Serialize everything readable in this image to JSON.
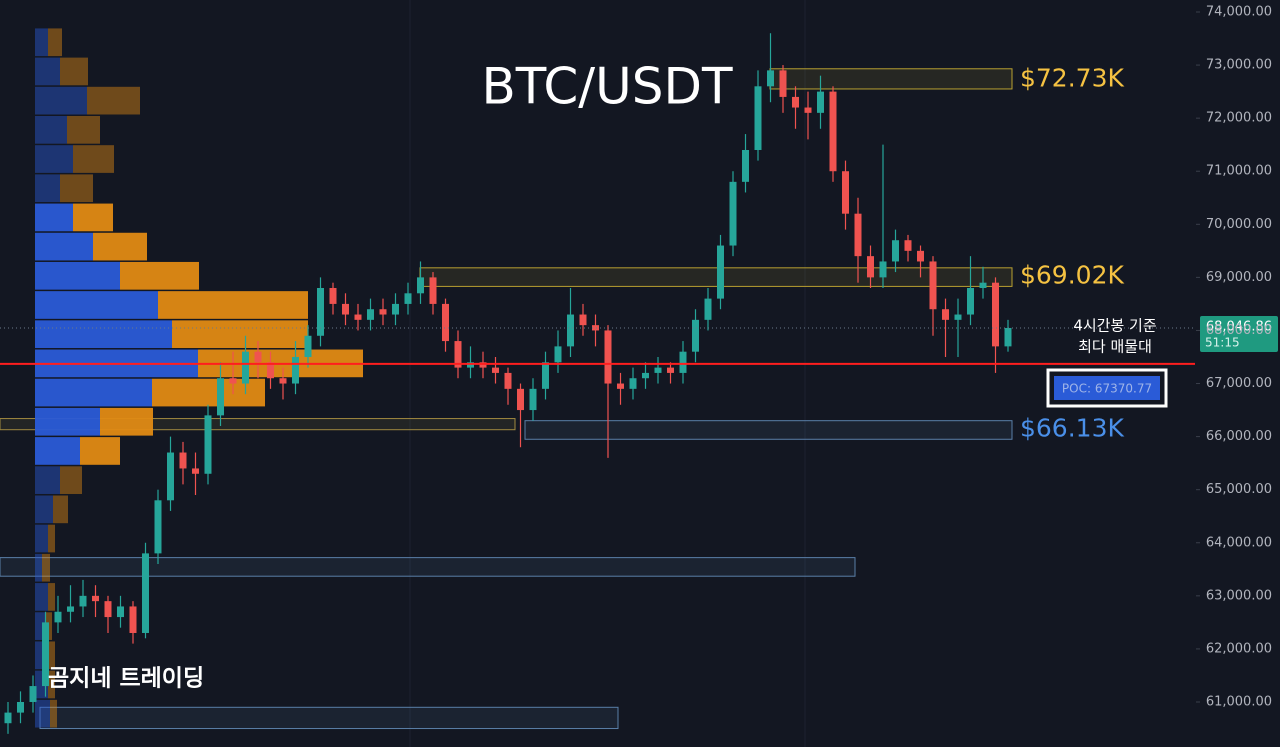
{
  "chart_data": {
    "type": "candlestick",
    "title": "BTC/USDT",
    "up_color": "#26a69a",
    "down_color": "#ef5350",
    "ylim": [
      60152,
      74226
    ],
    "yticks": [
      {
        "value": 61000,
        "label": "61,000.00"
      },
      {
        "value": 62000,
        "label": "62,000.00"
      },
      {
        "value": 63000,
        "label": "63,000.00"
      },
      {
        "value": 64000,
        "label": "64,000.00"
      },
      {
        "value": 65000,
        "label": "65,000.00"
      },
      {
        "value": 66000,
        "label": "66,000.00"
      },
      {
        "value": 67000,
        "label": "67,000.00"
      },
      {
        "value": 68000,
        "label": "68,000.00"
      },
      {
        "value": 69000,
        "label": "69,000.00"
      },
      {
        "value": 70000,
        "label": "70,000.00"
      },
      {
        "value": 71000,
        "label": "71,000.00"
      },
      {
        "value": 72000,
        "label": "72,000.00"
      },
      {
        "value": 73000,
        "label": "73,000.00"
      },
      {
        "value": 74000,
        "label": "74,000.00"
      }
    ],
    "open": [
      60600,
      60800,
      61000,
      61300,
      62500,
      62700,
      62800,
      63000,
      62900,
      62600,
      62800,
      62300,
      63800,
      64800,
      65700,
      65400,
      65300,
      66400,
      67100,
      67000,
      67600,
      67400,
      67100,
      67000,
      67500,
      67900,
      68800,
      68500,
      68300,
      68200,
      68400,
      68300,
      68500,
      68700,
      69000,
      68500,
      67800,
      67300,
      67400,
      67300,
      67200,
      66900,
      66500,
      66900,
      67400,
      67700,
      68300,
      68100,
      68000,
      67000,
      66900,
      67100,
      67200,
      67300,
      67200,
      67600,
      68200,
      68600,
      69600,
      70800,
      71400,
      72600,
      72900,
      72400,
      72200,
      72100,
      72500,
      71000,
      70200,
      69400,
      69000,
      69300,
      69700,
      69500,
      69300,
      68400,
      68200,
      68300,
      68800,
      68900,
      67700
    ],
    "high": [
      61000,
      61200,
      61500,
      62700,
      63000,
      63200,
      63300,
      63200,
      63000,
      63000,
      62900,
      64000,
      65000,
      66000,
      65900,
      65700,
      66600,
      67400,
      67600,
      67900,
      67800,
      67600,
      67300,
      67800,
      68100,
      69000,
      68900,
      68700,
      68500,
      68600,
      68600,
      68700,
      68900,
      69300,
      69100,
      68600,
      68000,
      67700,
      67600,
      67500,
      67300,
      67000,
      67100,
      67600,
      68000,
      68800,
      68500,
      68300,
      68100,
      67200,
      67300,
      67400,
      67500,
      67400,
      67800,
      68400,
      68800,
      69800,
      71000,
      71700,
      72900,
      73600,
      73000,
      72600,
      72500,
      72800,
      72600,
      71200,
      70500,
      69600,
      71500,
      69900,
      69800,
      69600,
      69400,
      68600,
      68600,
      69400,
      69200,
      69000,
      68200
    ],
    "low": [
      60400,
      60600,
      60800,
      61100,
      62300,
      62500,
      62600,
      62600,
      62300,
      62400,
      62100,
      62200,
      63600,
      64600,
      65100,
      64900,
      65100,
      66200,
      66800,
      66800,
      67100,
      66900,
      66700,
      66800,
      67300,
      67700,
      68300,
      68100,
      68000,
      68000,
      68100,
      68100,
      68300,
      68500,
      68300,
      67600,
      67100,
      67100,
      67100,
      67000,
      66600,
      65800,
      66300,
      66700,
      67200,
      67500,
      67900,
      67700,
      65600,
      66600,
      66700,
      66900,
      67000,
      67000,
      67000,
      67400,
      68000,
      68400,
      69400,
      70600,
      71200,
      72300,
      72100,
      71800,
      71600,
      71800,
      70800,
      69900,
      68900,
      68800,
      68800,
      69100,
      69300,
      69000,
      67900,
      67500,
      67500,
      68100,
      68600,
      67200,
      67600
    ],
    "close": [
      60800,
      61000,
      61300,
      62500,
      62700,
      62800,
      63000,
      62900,
      62600,
      62800,
      62300,
      63800,
      64800,
      65700,
      65400,
      65300,
      66400,
      67100,
      67000,
      67600,
      67400,
      67100,
      67000,
      67500,
      67900,
      68800,
      68500,
      68300,
      68200,
      68400,
      68300,
      68500,
      68700,
      69000,
      68500,
      67800,
      67300,
      67400,
      67300,
      67200,
      66900,
      66500,
      66900,
      67400,
      67700,
      68300,
      68100,
      68000,
      67000,
      66900,
      67100,
      67200,
      67300,
      67200,
      67600,
      68200,
      68600,
      69600,
      70800,
      71400,
      72600,
      72900,
      72400,
      72200,
      72100,
      72500,
      71000,
      70200,
      69400,
      69000,
      69300,
      69700,
      69500,
      69300,
      68400,
      68200,
      68300,
      68800,
      68900,
      67700,
      68046.86
    ],
    "volume_profile": {
      "bins": [
        60500,
        61050,
        61600,
        62150,
        62700,
        63250,
        63800,
        64350,
        64900,
        65450,
        66000,
        66550,
        67100,
        67650,
        68200,
        68750,
        69300,
        69850,
        70400,
        70950,
        71500,
        72050,
        72600,
        73150,
        73700
      ],
      "buy": [
        15,
        13,
        13,
        10,
        13,
        7,
        13,
        18,
        25,
        45,
        65,
        117,
        163,
        137,
        123,
        85,
        58,
        38,
        25,
        38,
        32,
        52,
        25,
        13
      ],
      "sell": [
        7,
        7,
        7,
        7,
        7,
        8,
        7,
        15,
        22,
        40,
        53,
        113,
        165,
        136,
        150,
        79,
        54,
        40,
        33,
        41,
        33,
        53,
        28,
        14
      ],
      "buy_color": "#2a5bd7",
      "sell_color": "#e08a14"
    },
    "zones": [
      {
        "low": 72550,
        "high": 72930,
        "color": "#b8a030"
      },
      {
        "low": 68830,
        "high": 69180,
        "color": "#b8a030"
      },
      {
        "low": 65950,
        "high": 66300,
        "color": "#5a7fa8"
      },
      {
        "low": 66130,
        "high": 66340,
        "color": "#a08a40"
      },
      {
        "low": 63370,
        "high": 63720,
        "color": "#5a7fa8"
      },
      {
        "low": 60500,
        "high": 60900,
        "color": "#5a7fa8"
      }
    ],
    "annotations": [
      {
        "text": "$72.73K",
        "value": 72730,
        "color": "#f5c242"
      },
      {
        "text": "$69.02K",
        "value": 69020,
        "color": "#f5c242"
      },
      {
        "text": "$66.13K",
        "value": 66130,
        "color": "#4a8fe8"
      }
    ],
    "poc": {
      "value": 67370.77,
      "label": "POC: 67370.77",
      "color": "#ff1e1e"
    },
    "poc_note": [
      "4시간봉 기준",
      "최다 매물대"
    ],
    "last_price": {
      "value": 68046.86,
      "label": "68,046.86",
      "countdown": "51:15",
      "color": "#1f9a80"
    },
    "watermark": "곰지네 트레이딩"
  }
}
